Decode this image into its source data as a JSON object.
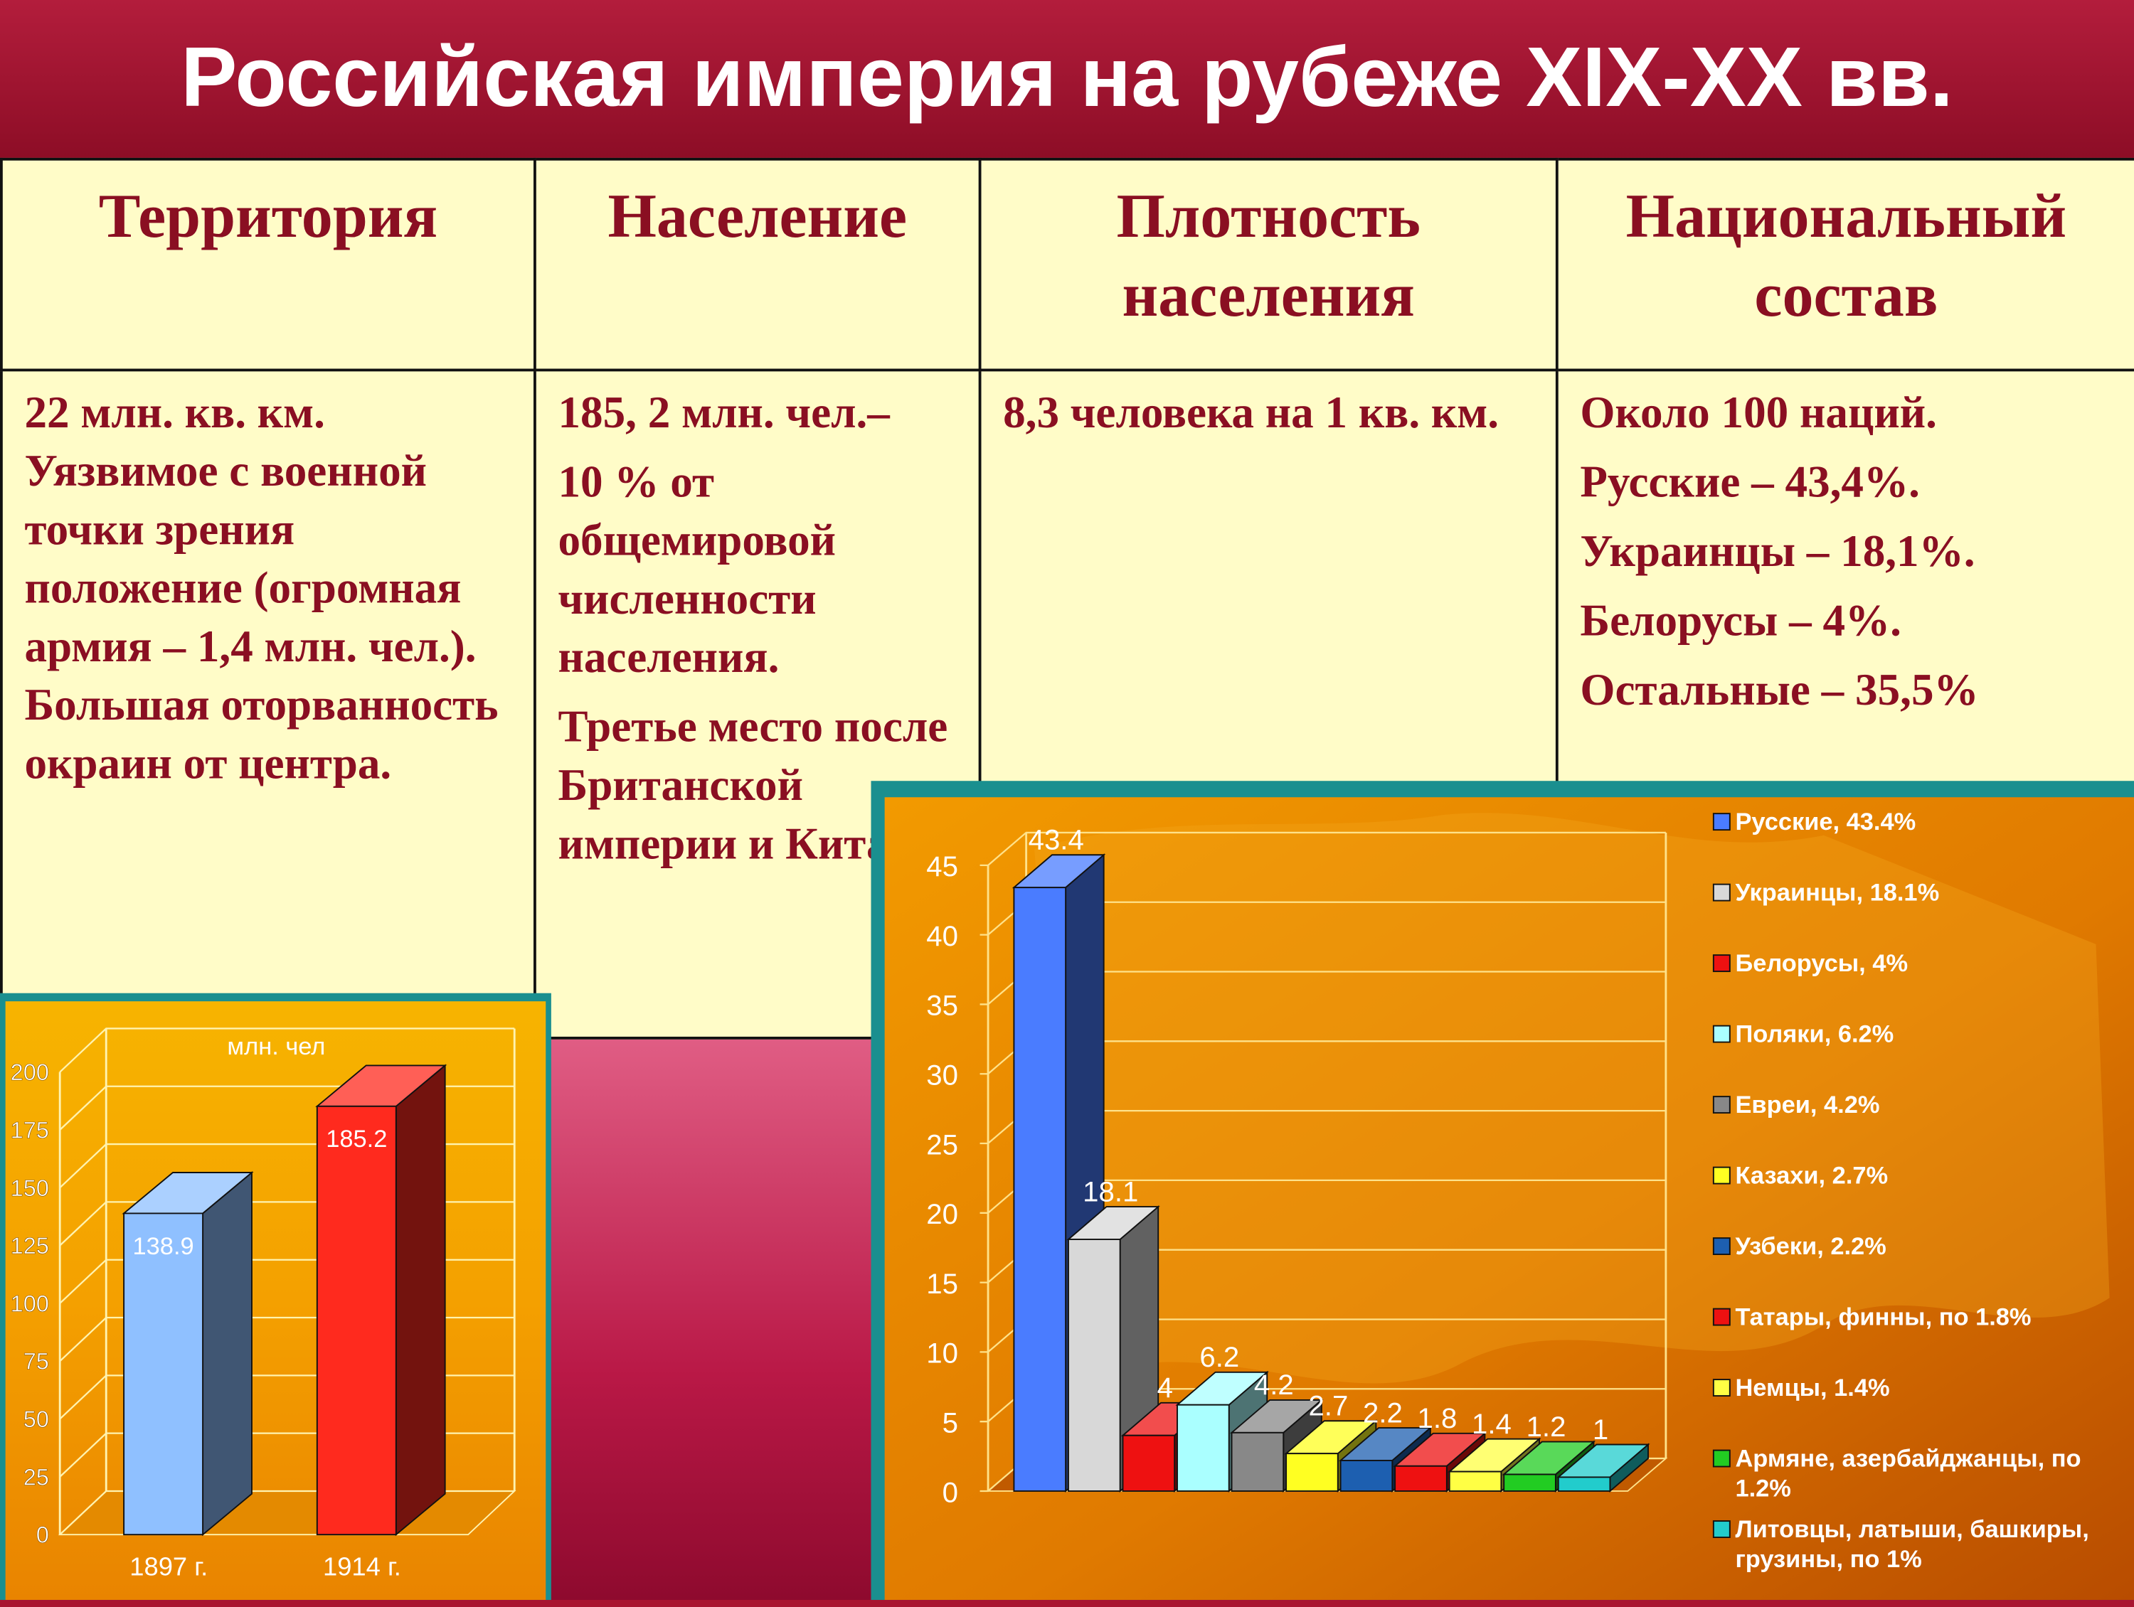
{
  "title": "Российская империя на рубеже XIX-XX вв.",
  "table": {
    "headers": [
      "Территория",
      "Население",
      "Плотность населения",
      "Национальный состав"
    ],
    "cells": [
      [
        "22 млн. кв. км. Уязвимое с военной точки зрения положение (огромная армия – 1,4 млн. чел.). Большая оторванность окраин от центра."
      ],
      [
        "185, 2 млн. чел.–",
        "10 % от общемировой численности населения.",
        "Третье место после Британской империи и Китая."
      ],
      [
        "8,3 человека на 1 кв. км."
      ],
      [
        "Около 100 наций.",
        "Русские – 43,4%.",
        "Украинцы – 18,1%.",
        "Белорусы – 4%.",
        "Остальные – 35,5%"
      ]
    ]
  },
  "chart_data": [
    {
      "type": "bar",
      "title": "млн. чел",
      "categories": [
        "1897 г.",
        "1914 г."
      ],
      "values": [
        138.9,
        185.2
      ],
      "labels": [
        "138.9",
        "185.2"
      ],
      "ylim": [
        0,
        200
      ],
      "yticks": [
        0,
        25,
        50,
        75,
        100,
        125,
        150,
        175,
        200
      ],
      "colors": [
        "#8fc0ff",
        "#ff2a1e"
      ],
      "grid": true
    },
    {
      "type": "bar",
      "ylim": [
        0,
        45
      ],
      "yticks": [
        0,
        5,
        10,
        15,
        20,
        25,
        30,
        35,
        40,
        45
      ],
      "values": [
        43.4,
        18.1,
        4,
        6.2,
        4.2,
        2.7,
        2.2,
        1.8,
        1.4,
        1.2,
        1
      ],
      "labels": [
        "43.4",
        "18.1",
        "4",
        "6.2",
        "4.2",
        "2.7",
        "2.2",
        "1.8",
        "1.4",
        "1.2",
        "1"
      ],
      "colors": [
        "#4a7cff",
        "#d8d8d8",
        "#ee1111",
        "#aaffff",
        "#888888",
        "#ffff22",
        "#1d5fb0",
        "#ee1111",
        "#ffff44",
        "#22cc22",
        "#22cccc"
      ],
      "legend_position": "right",
      "legend": [
        {
          "lines": [
            "Русские, 43.4%"
          ],
          "color": "#4a7cff"
        },
        {
          "lines": [
            "Украинцы, 18.1%"
          ],
          "color": "#d8d8d8"
        },
        {
          "lines": [
            "Белорусы, 4%"
          ],
          "color": "#ee1111"
        },
        {
          "lines": [
            "Поляки, 6.2%"
          ],
          "color": "#aaffff"
        },
        {
          "lines": [
            "Евреи, 4.2%"
          ],
          "color": "#888888"
        },
        {
          "lines": [
            "Казахи, 2.7%"
          ],
          "color": "#ffff22"
        },
        {
          "lines": [
            "Узбеки, 2.2%"
          ],
          "color": "#1d5fb0"
        },
        {
          "lines": [
            "Татары, финны, по 1.8%"
          ],
          "color": "#ee1111"
        },
        {
          "lines": [
            "Немцы, 1.4%"
          ],
          "color": "#ffff44"
        },
        {
          "lines": [
            "Армяне, азербайджанцы, по",
            "1.2%"
          ],
          "color": "#22cc22"
        },
        {
          "lines": [
            "Литовцы, латыши, башкиры,",
            "грузины, по 1%"
          ],
          "color": "#22cccc"
        }
      ],
      "grid": true
    }
  ]
}
